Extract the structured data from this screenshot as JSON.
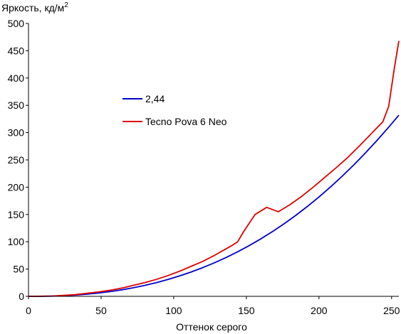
{
  "chart_data": {
    "type": "line",
    "title": "",
    "ylabel": "Яркость, кд/м",
    "ylabel_sup": "2",
    "xlabel": "Оттенок серого",
    "xlim": [
      0,
      255
    ],
    "ylim": [
      0,
      500
    ],
    "xticks": [
      0,
      50,
      100,
      150,
      200,
      250
    ],
    "yticks": [
      0,
      50,
      100,
      150,
      200,
      250,
      300,
      350,
      400,
      450,
      500
    ],
    "grid": false,
    "legend_position": "upper-left-center",
    "series": [
      {
        "name": "2,44",
        "color": "#0000cc",
        "x": [
          0,
          8,
          16,
          24,
          32,
          40,
          48,
          56,
          64,
          72,
          80,
          88,
          96,
          104,
          112,
          120,
          128,
          136,
          144,
          152,
          160,
          168,
          176,
          184,
          192,
          200,
          208,
          216,
          224,
          232,
          240,
          248,
          255
        ],
        "y": [
          0,
          0.1,
          0.4,
          1.1,
          2.3,
          3.9,
          6.0,
          8.6,
          11.8,
          15.6,
          20.0,
          25.1,
          30.9,
          37.4,
          44.6,
          52.6,
          61.4,
          71.1,
          81.6,
          93.0,
          105.4,
          118.7,
          133.0,
          148.3,
          164.7,
          182.1,
          200.6,
          220.2,
          240.9,
          262.8,
          285.8,
          310.0,
          332.0
        ]
      },
      {
        "name": "Tecno Pova 6 Neo",
        "color": "#dd0000",
        "x": [
          0,
          16,
          32,
          48,
          56,
          64,
          72,
          80,
          88,
          96,
          104,
          112,
          120,
          128,
          136,
          140,
          144,
          148,
          156,
          164,
          172,
          180,
          188,
          196,
          204,
          212,
          220,
          228,
          236,
          244,
          248,
          252,
          255
        ],
        "y": [
          0,
          0.5,
          3,
          8,
          11,
          15,
          20,
          25,
          31,
          38,
          46,
          55,
          64,
          75,
          87,
          93,
          100,
          118,
          150,
          163,
          155,
          168,
          183,
          200,
          218,
          236,
          255,
          276,
          298,
          320,
          348,
          420,
          468
        ]
      }
    ]
  }
}
